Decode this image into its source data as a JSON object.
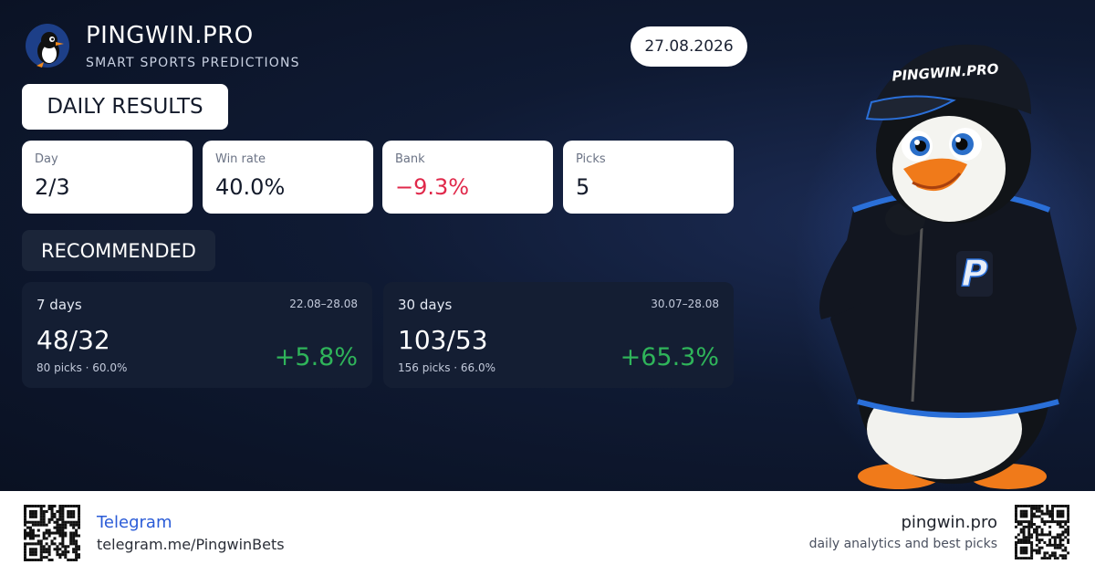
{
  "header": {
    "brand": "PINGWIN.PRO",
    "tagline": "SMART SPORTS PREDICTIONS",
    "date": "27.08.2026"
  },
  "daily": {
    "title": "DAILY RESULTS",
    "stats": [
      {
        "label": "Day",
        "value": "2/3"
      },
      {
        "label": "Win rate",
        "value": "40.0%"
      },
      {
        "label": "Bank",
        "value": "−9.3%"
      },
      {
        "label": "Picks",
        "value": "5"
      }
    ]
  },
  "recommended": {
    "title": "RECOMMENDED",
    "cards": [
      {
        "period": "7 days",
        "range": "22.08–28.08",
        "record": "48/32",
        "summary": "80 picks · 60.0%",
        "change": "+5.8%"
      },
      {
        "period": "30 days",
        "range": "30.07–28.08",
        "record": "103/53",
        "summary": "156 picks · 66.0%",
        "change": "+65.3%"
      }
    ]
  },
  "mascot": {
    "cap_text": "PINGWIN.PRO",
    "hoodie_letter": "P"
  },
  "footer": {
    "telegram_label": "Telegram",
    "telegram_url": "telegram.me/PingwinBets",
    "site": "pingwin.pro",
    "site_tagline": "daily analytics and best picks"
  }
}
